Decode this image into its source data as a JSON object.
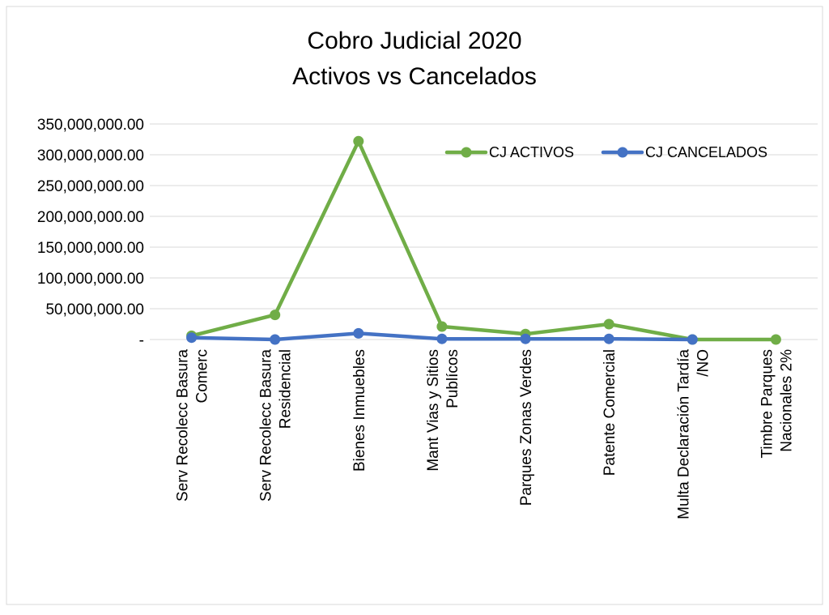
{
  "chart_data": {
    "type": "line",
    "title": [
      "Cobro Judicial 2020",
      "Activos vs Cancelados"
    ],
    "xlabel": "",
    "ylabel": "",
    "ylim": [
      0,
      350000000
    ],
    "y_ticks": [
      0,
      50000000,
      100000000,
      150000000,
      200000000,
      250000000,
      300000000,
      350000000
    ],
    "y_tick_labels": [
      "-",
      "50,000,000.00",
      "100,000,000.00",
      "150,000,000.00",
      "200,000,000.00",
      "250,000,000.00",
      "300,000,000.00",
      "350,000,000.00"
    ],
    "grid": true,
    "legend_position": "top-right",
    "categories": [
      [
        "Serv Recolecc Basura",
        "Comerc"
      ],
      [
        "Serv Recolecc Basura",
        "Residencial"
      ],
      [
        "Bienes Inmuebles"
      ],
      [
        "Mant Vias y Sitios",
        "Publícos"
      ],
      [
        "Parques Zonas Verdes"
      ],
      [
        "Patente Comercial"
      ],
      [
        "Multa Declaración Tardía",
        "/NO"
      ],
      [
        "Timbre Parques",
        "Nacionales 2%"
      ]
    ],
    "series": [
      {
        "name": "CJ  ACTIVOS",
        "color": "#70AD47",
        "values": [
          6000000,
          40000000,
          322000000,
          21000000,
          9000000,
          25000000,
          0,
          0
        ]
      },
      {
        "name": "CJ  CANCELADOS",
        "color": "#4472C4",
        "values": [
          3000000,
          0,
          10000000,
          1000000,
          1000000,
          1000000,
          0,
          null
        ]
      }
    ]
  }
}
